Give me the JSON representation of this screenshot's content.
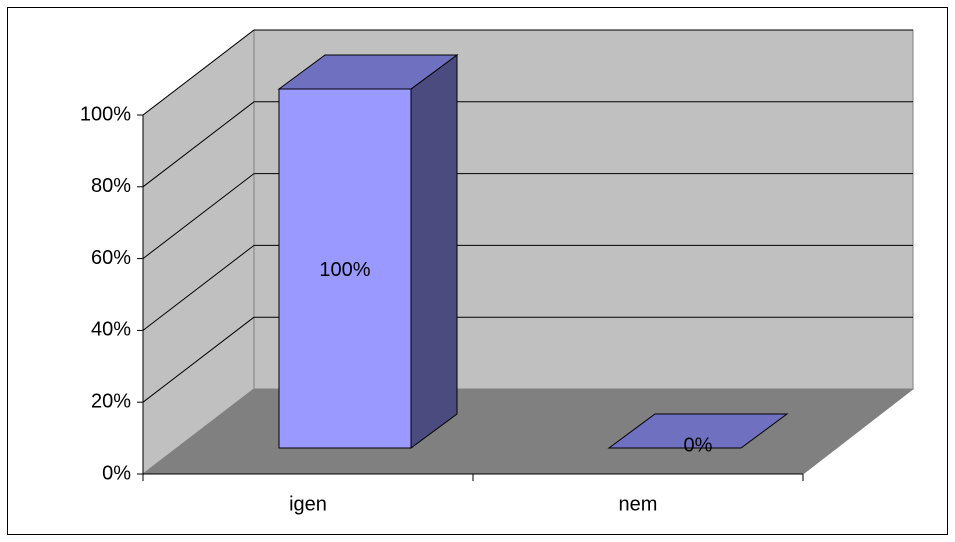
{
  "chart_data": {
    "type": "bar",
    "title": "",
    "xlabel": "",
    "ylabel": "",
    "categories": [
      "igen",
      "nem"
    ],
    "values": [
      100,
      0
    ],
    "value_labels": [
      "100%",
      "0%"
    ],
    "ylim": [
      0,
      100
    ],
    "yticks": [
      0,
      20,
      40,
      60,
      80,
      100
    ],
    "ytick_labels": [
      "0%",
      "20%",
      "40%",
      "60%",
      "80%",
      "100%"
    ],
    "grid": true,
    "legend": "none",
    "three_d": true,
    "colors": {
      "bar_front": "#9999FF",
      "bar_top": "#7070C0",
      "bar_side": "#4B4B80",
      "back_wall": "#C0C0C0",
      "side_wall": "#C0C0C0",
      "floor": "#808080",
      "gridline": "#000000"
    }
  }
}
